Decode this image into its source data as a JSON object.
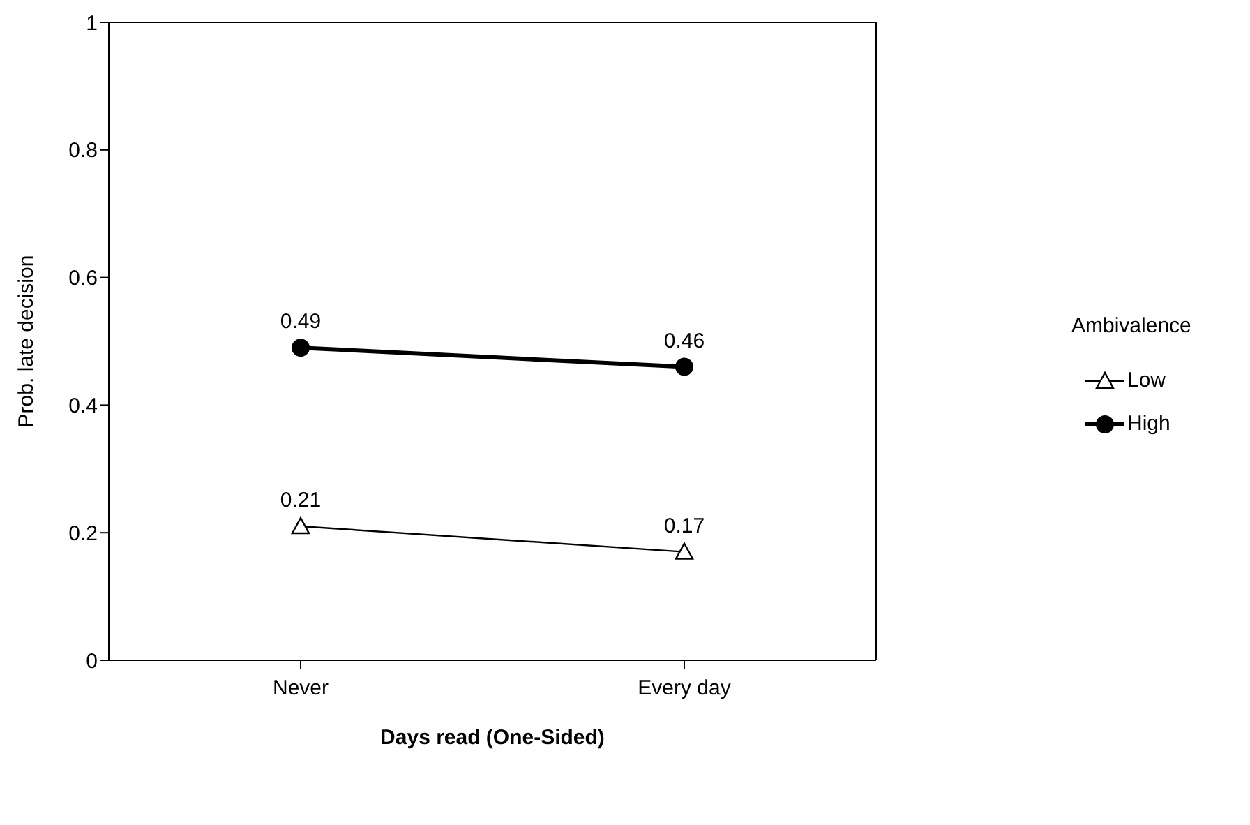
{
  "chart_data": {
    "type": "line",
    "xlabel": "Days read (One-Sided)",
    "ylabel": "Prob. late decision",
    "legend_title": "Ambivalence",
    "categories": [
      "Never",
      "Every day"
    ],
    "series": [
      {
        "name": "Low",
        "color": "#000000",
        "values": [
          0.21,
          0.17
        ],
        "marker": "triangle"
      },
      {
        "name": "High",
        "color": "#000000",
        "values": [
          0.49,
          0.46
        ],
        "marker": "circle"
      }
    ],
    "ylim": [
      0,
      1
    ],
    "yticks": [
      0,
      0.2,
      0.4,
      0.6,
      0.8,
      1
    ],
    "data_labels": true,
    "legend": "right",
    "grid": false
  }
}
